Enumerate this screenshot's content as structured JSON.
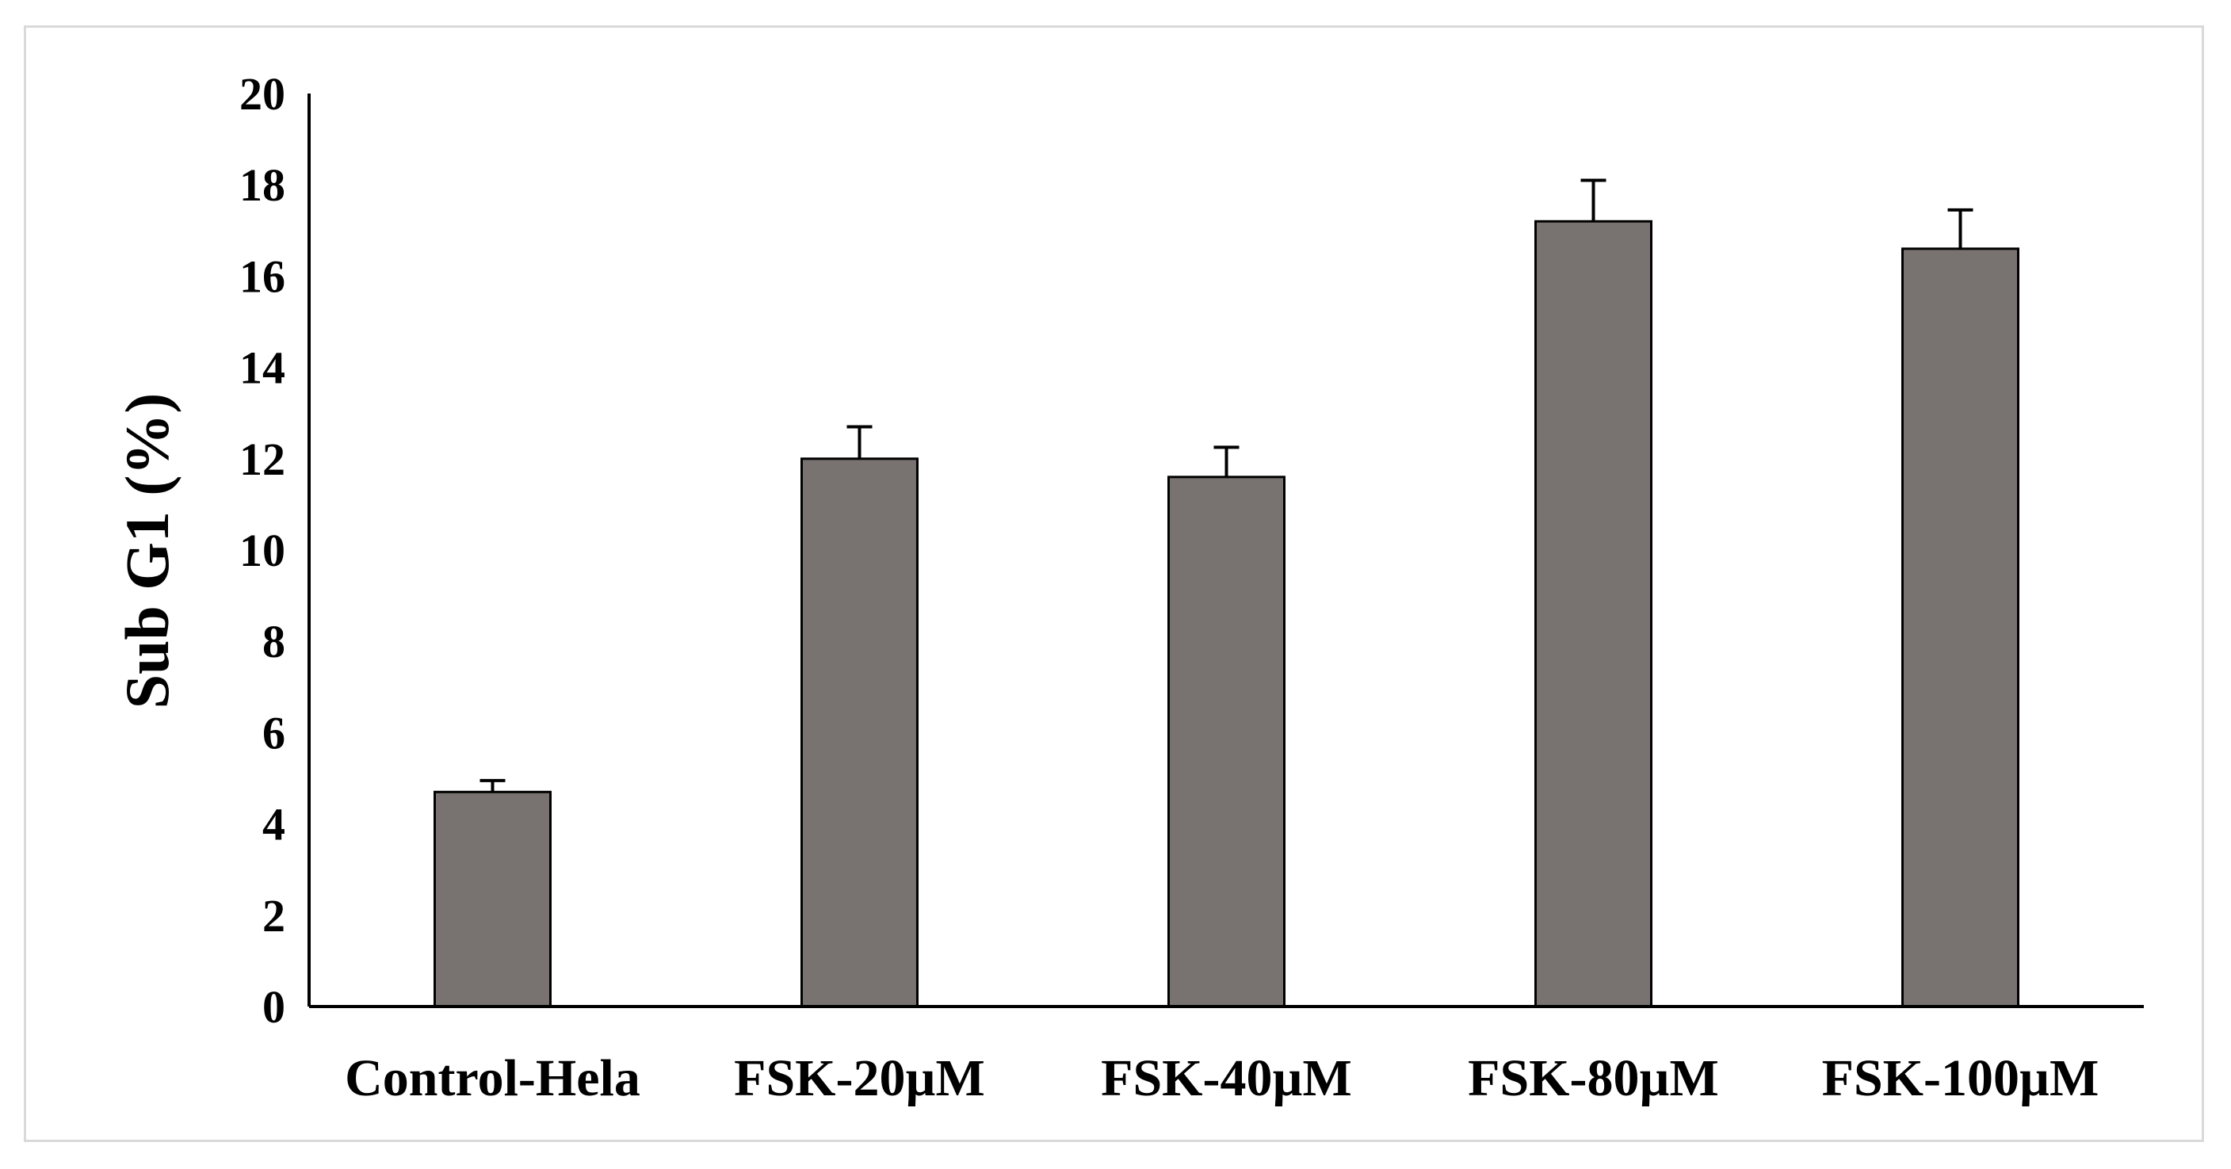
{
  "chart_data": {
    "type": "bar",
    "title": "",
    "xlabel": "",
    "ylabel": "Sub G1 (%)",
    "categories": [
      "Control-Hela",
      "FSK-20µM",
      "FSK-40µM",
      "FSK-80µM",
      "FSK-100µM"
    ],
    "values": [
      4.7,
      12.0,
      11.6,
      17.2,
      16.6
    ],
    "error": [
      0.25,
      0.7,
      0.65,
      0.9,
      0.85
    ],
    "ylim": [
      0,
      20
    ],
    "yticks": [
      "0",
      "2",
      "4",
      "6",
      "8",
      "10",
      "12",
      "14",
      "16",
      "18",
      "20"
    ],
    "grid": false,
    "legend": "none",
    "bar_color": "#787370",
    "bar_edge_color": "#000000"
  }
}
